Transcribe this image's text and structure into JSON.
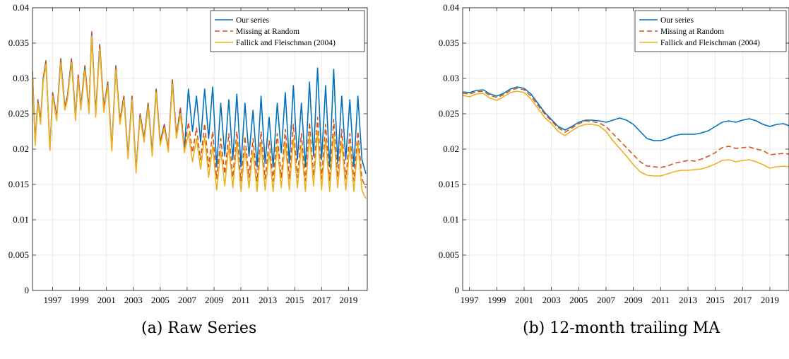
{
  "chart_data": [
    {
      "type": "line",
      "caption": "(a) Raw Series",
      "xlim": [
        1995.5,
        2020.4
      ],
      "ylim": [
        0,
        0.04
      ],
      "x_ticks": [
        1997,
        1999,
        2001,
        2003,
        2005,
        2007,
        2009,
        2011,
        2013,
        2015,
        2017,
        2019
      ],
      "x_tick_labels": [
        "1997",
        "1999",
        "2001",
        "2003",
        "2005",
        "2007",
        "2009",
        "2011",
        "2013",
        "2015",
        "2017",
        "2019"
      ],
      "y_ticks": [
        0,
        0.005,
        0.01,
        0.015,
        0.02,
        0.025,
        0.03,
        0.035,
        0.04
      ],
      "y_tick_labels": [
        "0",
        "0.005",
        "0.01",
        "0.015",
        "0.02",
        "0.025",
        "0.03",
        "0.035",
        "0.04"
      ],
      "grid": true,
      "legend_position": "top-right",
      "series": [
        {
          "name": "Our series",
          "color": "#0072BD",
          "style": "solid",
          "x": [
            1995.5,
            1995.7,
            1995.9,
            1996.1,
            1996.3,
            1996.5,
            1996.8,
            1997.0,
            1997.3,
            1997.6,
            1997.9,
            1998.1,
            1998.4,
            1998.7,
            1998.9,
            1999.1,
            1999.4,
            1999.7,
            1999.9,
            2000.2,
            2000.5,
            2000.8,
            2001.1,
            2001.4,
            2001.7,
            2002.0,
            2002.3,
            2002.6,
            2002.9,
            2003.2,
            2003.5,
            2003.8,
            2004.1,
            2004.4,
            2004.7,
            2005.0,
            2005.3,
            2005.6,
            2005.9,
            2006.2,
            2006.5,
            2006.8,
            2007.1,
            2007.4,
            2007.7,
            2008.0,
            2008.3,
            2008.6,
            2008.9,
            2009.2,
            2009.5,
            2009.8,
            2010.1,
            2010.4,
            2010.7,
            2011.0,
            2011.3,
            2011.6,
            2011.9,
            2012.2,
            2012.5,
            2012.8,
            2013.1,
            2013.4,
            2013.7,
            2014.0,
            2014.3,
            2014.6,
            2014.9,
            2015.2,
            2015.5,
            2015.8,
            2016.1,
            2016.4,
            2016.7,
            2017.0,
            2017.3,
            2017.6,
            2017.9,
            2018.2,
            2018.5,
            2018.8,
            2019.1,
            2019.4,
            2019.7,
            2020.0,
            2020.3
          ],
          "y": [
            0.031,
            0.021,
            0.027,
            0.024,
            0.03,
            0.0325,
            0.02,
            0.028,
            0.0245,
            0.0328,
            0.026,
            0.0275,
            0.0328,
            0.0245,
            0.0305,
            0.026,
            0.0318,
            0.0255,
            0.0366,
            0.025,
            0.0348,
            0.0258,
            0.0295,
            0.02,
            0.0318,
            0.024,
            0.0275,
            0.019,
            0.0275,
            0.017,
            0.025,
            0.0215,
            0.0265,
            0.0195,
            0.0285,
            0.021,
            0.0235,
            0.02,
            0.0298,
            0.022,
            0.0255,
            0.02,
            0.0285,
            0.0225,
            0.0275,
            0.021,
            0.0285,
            0.0215,
            0.0288,
            0.0175,
            0.0265,
            0.019,
            0.027,
            0.0185,
            0.0278,
            0.0175,
            0.0265,
            0.019,
            0.0255,
            0.0175,
            0.0275,
            0.018,
            0.0245,
            0.0175,
            0.0265,
            0.0195,
            0.028,
            0.018,
            0.029,
            0.0185,
            0.0265,
            0.0175,
            0.0295,
            0.019,
            0.0315,
            0.0185,
            0.029,
            0.0175,
            0.0313,
            0.018,
            0.0275,
            0.0185,
            0.027,
            0.0175,
            0.0275,
            0.0185,
            0.0165
          ]
        },
        {
          "name": "Missing at Random",
          "color": "#D95319",
          "style": "dashed",
          "x": [
            1995.5,
            1995.7,
            1995.9,
            1996.1,
            1996.3,
            1996.5,
            1996.8,
            1997.0,
            1997.3,
            1997.6,
            1997.9,
            1998.1,
            1998.4,
            1998.7,
            1998.9,
            1999.1,
            1999.4,
            1999.7,
            1999.9,
            2000.2,
            2000.5,
            2000.8,
            2001.1,
            2001.4,
            2001.7,
            2002.0,
            2002.3,
            2002.6,
            2002.9,
            2003.2,
            2003.5,
            2003.8,
            2004.1,
            2004.4,
            2004.7,
            2005.0,
            2005.3,
            2005.6,
            2005.9,
            2006.2,
            2006.5,
            2006.8,
            2007.1,
            2007.4,
            2007.7,
            2008.0,
            2008.3,
            2008.6,
            2008.9,
            2009.2,
            2009.5,
            2009.8,
            2010.1,
            2010.4,
            2010.7,
            2011.0,
            2011.3,
            2011.6,
            2011.9,
            2012.2,
            2012.5,
            2012.8,
            2013.1,
            2013.4,
            2013.7,
            2014.0,
            2014.3,
            2014.6,
            2014.9,
            2015.2,
            2015.5,
            2015.8,
            2016.1,
            2016.4,
            2016.7,
            2017.0,
            2017.3,
            2017.6,
            2017.9,
            2018.2,
            2018.5,
            2018.8,
            2019.1,
            2019.4,
            2019.7,
            2020.0,
            2020.3
          ],
          "y": [
            0.031,
            0.021,
            0.027,
            0.024,
            0.03,
            0.0325,
            0.02,
            0.028,
            0.0245,
            0.0328,
            0.026,
            0.0275,
            0.0328,
            0.0245,
            0.0305,
            0.026,
            0.0318,
            0.0255,
            0.0366,
            0.025,
            0.0348,
            0.0258,
            0.0295,
            0.02,
            0.0318,
            0.024,
            0.0275,
            0.019,
            0.0275,
            0.017,
            0.025,
            0.0215,
            0.0265,
            0.0195,
            0.0285,
            0.021,
            0.0235,
            0.02,
            0.0298,
            0.022,
            0.026,
            0.02,
            0.0238,
            0.0195,
            0.023,
            0.0185,
            0.0236,
            0.0175,
            0.0225,
            0.0158,
            0.0215,
            0.0165,
            0.0222,
            0.016,
            0.0225,
            0.0155,
            0.0218,
            0.016,
            0.0215,
            0.0155,
            0.0225,
            0.0158,
            0.0212,
            0.0155,
            0.0222,
            0.016,
            0.0228,
            0.0158,
            0.0235,
            0.016,
            0.0222,
            0.0155,
            0.0238,
            0.0162,
            0.0245,
            0.0158,
            0.0235,
            0.0155,
            0.0242,
            0.016,
            0.0228,
            0.0158,
            0.0222,
            0.0155,
            0.0225,
            0.0158,
            0.0145
          ]
        },
        {
          "name": "Fallick and Fleischman (2004)",
          "color": "#EDB120",
          "style": "solid",
          "x": [
            1995.5,
            1995.7,
            1995.9,
            1996.1,
            1996.3,
            1996.5,
            1996.8,
            1997.0,
            1997.3,
            1997.6,
            1997.9,
            1998.1,
            1998.4,
            1998.7,
            1998.9,
            1999.1,
            1999.4,
            1999.7,
            1999.9,
            2000.2,
            2000.5,
            2000.8,
            2001.1,
            2001.4,
            2001.7,
            2002.0,
            2002.3,
            2002.6,
            2002.9,
            2003.2,
            2003.5,
            2003.8,
            2004.1,
            2004.4,
            2004.7,
            2005.0,
            2005.3,
            2005.6,
            2005.9,
            2006.2,
            2006.5,
            2006.8,
            2007.1,
            2007.4,
            2007.7,
            2008.0,
            2008.3,
            2008.6,
            2008.9,
            2009.2,
            2009.5,
            2009.8,
            2010.1,
            2010.4,
            2010.7,
            2011.0,
            2011.3,
            2011.6,
            2011.9,
            2012.2,
            2012.5,
            2012.8,
            2013.1,
            2013.4,
            2013.7,
            2014.0,
            2014.3,
            2014.6,
            2014.9,
            2015.2,
            2015.5,
            2015.8,
            2016.1,
            2016.4,
            2016.7,
            2017.0,
            2017.3,
            2017.6,
            2017.9,
            2018.2,
            2018.5,
            2018.8,
            2019.1,
            2019.4,
            2019.7,
            2020.0,
            2020.3
          ],
          "y": [
            0.0305,
            0.0205,
            0.0265,
            0.0235,
            0.0295,
            0.032,
            0.0198,
            0.0275,
            0.024,
            0.0322,
            0.0255,
            0.027,
            0.0322,
            0.024,
            0.03,
            0.0255,
            0.0312,
            0.025,
            0.036,
            0.0245,
            0.0342,
            0.0252,
            0.029,
            0.0197,
            0.0312,
            0.0235,
            0.027,
            0.0186,
            0.027,
            0.0166,
            0.0245,
            0.021,
            0.026,
            0.019,
            0.028,
            0.0205,
            0.023,
            0.0196,
            0.0292,
            0.0215,
            0.025,
            0.0195,
            0.0222,
            0.0182,
            0.0215,
            0.0172,
            0.0218,
            0.016,
            0.0205,
            0.0142,
            0.0198,
            0.0148,
            0.0205,
            0.0145,
            0.021,
            0.014,
            0.02,
            0.0145,
            0.0198,
            0.014,
            0.0208,
            0.0142,
            0.0195,
            0.014,
            0.0205,
            0.0145,
            0.021,
            0.0142,
            0.0215,
            0.0145,
            0.0205,
            0.014,
            0.022,
            0.0148,
            0.0225,
            0.0142,
            0.0215,
            0.014,
            0.0222,
            0.0145,
            0.021,
            0.0142,
            0.0205,
            0.014,
            0.0208,
            0.0142,
            0.013
          ]
        }
      ]
    },
    {
      "type": "line",
      "caption": "(b) 12-month trailing MA",
      "xlim": [
        1996.5,
        2020.4
      ],
      "ylim": [
        0,
        0.04
      ],
      "x_ticks": [
        1997,
        1999,
        2001,
        2003,
        2005,
        2007,
        2009,
        2011,
        2013,
        2015,
        2017,
        2019
      ],
      "x_tick_labels": [
        "1997",
        "1999",
        "2001",
        "2003",
        "2005",
        "2007",
        "2009",
        "2011",
        "2013",
        "2015",
        "2017",
        "2019"
      ],
      "y_ticks": [
        0,
        0.005,
        0.01,
        0.015,
        0.02,
        0.025,
        0.03,
        0.035,
        0.04
      ],
      "y_tick_labels": [
        "0",
        "0.005",
        "0.01",
        "0.015",
        "0.02",
        "0.025",
        "0.03",
        "0.035",
        "0.04"
      ],
      "grid": true,
      "legend_position": "top-right",
      "series": [
        {
          "name": "Our series",
          "color": "#0072BD",
          "style": "solid",
          "x": [
            1996.5,
            1997.0,
            1997.5,
            1998.0,
            1998.5,
            1999.0,
            1999.5,
            2000.0,
            2000.5,
            2001.0,
            2001.5,
            2002.0,
            2002.5,
            2003.0,
            2003.5,
            2004.0,
            2004.5,
            2005.0,
            2005.5,
            2006.0,
            2006.5,
            2007.0,
            2007.5,
            2008.0,
            2008.5,
            2009.0,
            2009.5,
            2010.0,
            2010.5,
            2011.0,
            2011.5,
            2012.0,
            2012.5,
            2013.0,
            2013.5,
            2014.0,
            2014.5,
            2015.0,
            2015.5,
            2016.0,
            2016.5,
            2017.0,
            2017.5,
            2018.0,
            2018.5,
            2019.0,
            2019.5,
            2020.0,
            2020.4
          ],
          "y": [
            0.0281,
            0.028,
            0.0283,
            0.0284,
            0.0278,
            0.0275,
            0.0279,
            0.0285,
            0.0288,
            0.0286,
            0.0278,
            0.0265,
            0.0252,
            0.0242,
            0.0232,
            0.0227,
            0.0232,
            0.0238,
            0.0241,
            0.0241,
            0.024,
            0.0238,
            0.0241,
            0.0244,
            0.0241,
            0.0235,
            0.0225,
            0.0215,
            0.0212,
            0.0212,
            0.0215,
            0.0219,
            0.0221,
            0.0221,
            0.0221,
            0.0223,
            0.0226,
            0.0232,
            0.0238,
            0.024,
            0.0238,
            0.0241,
            0.0243,
            0.024,
            0.0235,
            0.0232,
            0.0235,
            0.0236,
            0.0233
          ]
        },
        {
          "name": "Missing at Random",
          "color": "#D95319",
          "style": "dashed",
          "x": [
            1996.5,
            1997.0,
            1997.5,
            1998.0,
            1998.5,
            1999.0,
            1999.5,
            2000.0,
            2000.5,
            2001.0,
            2001.5,
            2002.0,
            2002.5,
            2003.0,
            2003.5,
            2004.0,
            2004.5,
            2005.0,
            2005.5,
            2006.0,
            2006.5,
            2007.0,
            2007.5,
            2008.0,
            2008.5,
            2009.0,
            2009.5,
            2010.0,
            2010.5,
            2011.0,
            2011.5,
            2012.0,
            2012.5,
            2013.0,
            2013.5,
            2014.0,
            2014.5,
            2015.0,
            2015.5,
            2016.0,
            2016.5,
            2017.0,
            2017.5,
            2018.0,
            2018.5,
            2019.0,
            2019.5,
            2020.0,
            2020.4
          ],
          "y": [
            0.0279,
            0.0278,
            0.0281,
            0.0282,
            0.0276,
            0.0273,
            0.0277,
            0.0283,
            0.0286,
            0.0284,
            0.0275,
            0.0262,
            0.025,
            0.024,
            0.023,
            0.0224,
            0.023,
            0.0236,
            0.024,
            0.0239,
            0.0237,
            0.0232,
            0.0222,
            0.0212,
            0.0202,
            0.0192,
            0.0182,
            0.0176,
            0.0175,
            0.0174,
            0.0176,
            0.018,
            0.0182,
            0.0184,
            0.0183,
            0.0186,
            0.019,
            0.0195,
            0.0202,
            0.0204,
            0.0201,
            0.0202,
            0.0203,
            0.02,
            0.0198,
            0.0192,
            0.0193,
            0.0194,
            0.0193
          ]
        },
        {
          "name": "Fallick and Fleischman (2004)",
          "color": "#EDB120",
          "style": "solid",
          "x": [
            1996.5,
            1997.0,
            1997.5,
            1998.0,
            1998.5,
            1999.0,
            1999.5,
            2000.0,
            2000.5,
            2001.0,
            2001.5,
            2002.0,
            2002.5,
            2003.0,
            2003.5,
            2004.0,
            2004.5,
            2005.0,
            2005.5,
            2006.0,
            2006.5,
            2007.0,
            2007.5,
            2008.0,
            2008.5,
            2009.0,
            2009.5,
            2010.0,
            2010.5,
            2011.0,
            2011.5,
            2012.0,
            2012.5,
            2013.0,
            2013.5,
            2014.0,
            2014.5,
            2015.0,
            2015.5,
            2016.0,
            2016.5,
            2017.0,
            2017.5,
            2018.0,
            2018.5,
            2019.0,
            2019.5,
            2020.0,
            2020.4
          ],
          "y": [
            0.0276,
            0.0274,
            0.0278,
            0.0279,
            0.0272,
            0.0269,
            0.0274,
            0.028,
            0.0282,
            0.028,
            0.0271,
            0.0258,
            0.0245,
            0.0236,
            0.0225,
            0.0219,
            0.0226,
            0.0232,
            0.0235,
            0.0235,
            0.0233,
            0.0225,
            0.0212,
            0.0201,
            0.019,
            0.0178,
            0.0168,
            0.0163,
            0.0162,
            0.0162,
            0.0165,
            0.0168,
            0.017,
            0.017,
            0.0171,
            0.0172,
            0.0175,
            0.0179,
            0.0184,
            0.0185,
            0.0182,
            0.0184,
            0.0185,
            0.0182,
            0.0178,
            0.0173,
            0.0175,
            0.0176,
            0.0175
          ]
        }
      ]
    }
  ]
}
